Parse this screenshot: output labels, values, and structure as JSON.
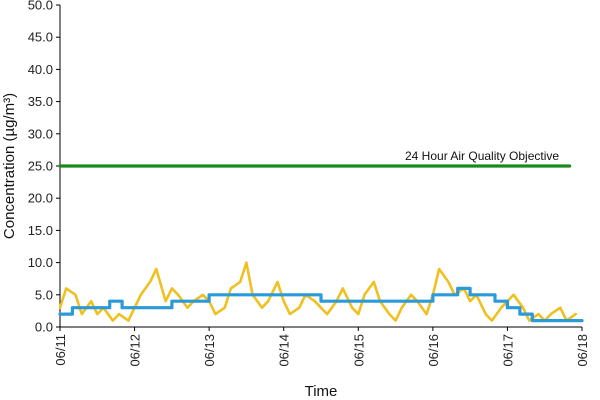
{
  "chart_data": {
    "type": "line",
    "title": "",
    "xlabel": "Time",
    "ylabel": "Concentration (µg/m³)",
    "ylim": [
      0,
      50
    ],
    "y_ticks": [
      "0.0",
      "5.0",
      "10.0",
      "15.0",
      "20.0",
      "25.0",
      "30.0",
      "35.0",
      "40.0",
      "45.0",
      "50.0"
    ],
    "x_ticks": [
      "06/11",
      "06/12",
      "06/13",
      "06/14",
      "06/15",
      "06/16",
      "06/17",
      "06/18"
    ],
    "xlim": [
      "06/11 00:00",
      "06/18 00:00"
    ],
    "grid": false,
    "legend": "none",
    "annotation": "24 Hour Air Quality Objective",
    "series": [
      {
        "color": "#f0c020",
        "x": [
          "06/11 00:00",
          "06/11 02:00",
          "06/11 05:00",
          "06/11 07:00",
          "06/11 10:00",
          "06/11 12:00",
          "06/11 14:00",
          "06/11 17:00",
          "06/11 19:00",
          "06/11 22:00",
          "06/12 00:00",
          "06/12 02:00",
          "06/12 05:00",
          "06/12 07:00",
          "06/12 10:00",
          "06/12 12:00",
          "06/12 14:00",
          "06/12 17:00",
          "06/12 19:00",
          "06/12 22:00",
          "06/13 00:00",
          "06/13 02:00",
          "06/13 05:00",
          "06/13 07:00",
          "06/13 10:00",
          "06/13 12:00",
          "06/13 14:00",
          "06/13 17:00",
          "06/13 19:00",
          "06/13 22:00",
          "06/14 00:00",
          "06/14 02:00",
          "06/14 05:00",
          "06/14 07:00",
          "06/14 10:00",
          "06/14 12:00",
          "06/14 14:00",
          "06/14 17:00",
          "06/14 19:00",
          "06/14 22:00",
          "06/15 00:00",
          "06/15 02:00",
          "06/15 05:00",
          "06/15 07:00",
          "06/15 10:00",
          "06/15 12:00",
          "06/15 14:00",
          "06/15 17:00",
          "06/15 19:00",
          "06/15 22:00",
          "06/16 00:00",
          "06/16 02:00",
          "06/16 05:00",
          "06/16 07:00",
          "06/16 10:00",
          "06/16 12:00",
          "06/16 14:00",
          "06/16 17:00",
          "06/16 19:00",
          "06/16 22:00",
          "06/17 00:00",
          "06/17 02:00",
          "06/17 05:00",
          "06/17 07:00",
          "06/17 10:00",
          "06/17 12:00",
          "06/17 14:00",
          "06/17 17:00",
          "06/17 19:00",
          "06/17 22:00"
        ],
        "values": [
          3,
          6,
          5,
          2,
          4,
          2,
          3,
          1,
          2,
          1,
          3,
          5,
          7,
          9,
          4,
          6,
          5,
          3,
          4,
          5,
          4,
          2,
          3,
          6,
          7,
          10,
          5,
          3,
          4,
          7,
          4,
          2,
          3,
          5,
          4,
          3,
          2,
          4,
          6,
          3,
          2,
          5,
          7,
          4,
          2,
          1,
          3,
          5,
          4,
          2,
          5,
          9,
          7,
          5,
          6,
          4,
          5,
          2,
          1,
          3,
          4,
          5,
          3,
          1,
          2,
          1,
          2,
          3,
          1,
          2
        ]
      },
      {
        "color": "#2a9ad8",
        "x": [
          "06/11 00:00",
          "06/11 04:00",
          "06/11 08:00",
          "06/11 12:00",
          "06/11 16:00",
          "06/11 20:00",
          "06/12 00:00",
          "06/12 04:00",
          "06/12 08:00",
          "06/12 12:00",
          "06/12 16:00",
          "06/12 20:00",
          "06/13 00:00",
          "06/13 04:00",
          "06/13 08:00",
          "06/13 12:00",
          "06/13 16:00",
          "06/13 20:00",
          "06/14 00:00",
          "06/14 04:00",
          "06/14 08:00",
          "06/14 12:00",
          "06/14 16:00",
          "06/14 20:00",
          "06/15 00:00",
          "06/15 04:00",
          "06/15 08:00",
          "06/15 12:00",
          "06/15 16:00",
          "06/15 20:00",
          "06/16 00:00",
          "06/16 04:00",
          "06/16 08:00",
          "06/16 12:00",
          "06/16 16:00",
          "06/16 20:00",
          "06/17 00:00",
          "06/17 04:00",
          "06/17 08:00",
          "06/17 12:00",
          "06/17 16:00",
          "06/17 20:00",
          "06/18 00:00"
        ],
        "values": [
          2,
          3,
          3,
          3,
          4,
          3,
          3,
          3,
          3,
          4,
          4,
          4,
          5,
          5,
          5,
          5,
          5,
          5,
          5,
          5,
          5,
          4,
          4,
          4,
          4,
          4,
          4,
          4,
          4,
          4,
          5,
          5,
          6,
          5,
          5,
          4,
          3,
          2,
          1,
          1,
          1,
          1,
          1
        ]
      },
      {
        "color": "#1a8a1a",
        "x": [
          "06/11 00:00",
          "06/17 20:00"
        ],
        "values": [
          25,
          25
        ]
      }
    ]
  }
}
